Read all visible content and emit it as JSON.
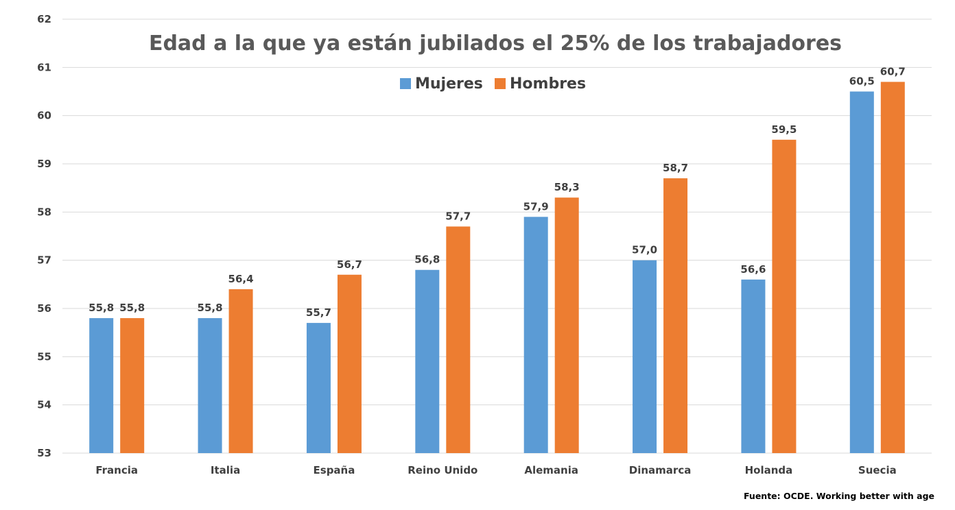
{
  "chart_data": {
    "type": "bar",
    "title": "Edad a la que ya están jubilados el 25% de los trabajadores",
    "categories": [
      "Francia",
      "Italia",
      "España",
      "Reino Unido",
      "Alemania",
      "Dinamarca",
      "Holanda",
      "Suecia"
    ],
    "series": [
      {
        "name": "Mujeres",
        "color": "#5b9bd5",
        "values": [
          55.8,
          55.8,
          55.7,
          56.8,
          57.9,
          57.0,
          56.6,
          60.5
        ],
        "labels": [
          "55,8",
          "55,8",
          "55,7",
          "56,8",
          "57,9",
          "57,0",
          "56,6",
          "60,5"
        ]
      },
      {
        "name": "Hombres",
        "color": "#ed7d31",
        "values": [
          55.8,
          56.4,
          56.7,
          57.7,
          58.3,
          58.7,
          59.5,
          60.7
        ],
        "labels": [
          "55,8",
          "56,4",
          "56,7",
          "57,7",
          "58,3",
          "58,7",
          "59,5",
          "60,7"
        ]
      }
    ],
    "ylim": [
      53,
      62
    ],
    "yticks": [
      53,
      54,
      55,
      56,
      57,
      58,
      59,
      60,
      61,
      62
    ],
    "xlabel": "",
    "ylabel": "",
    "grid": true,
    "legend_position": "top-center"
  },
  "source": "Fuente: OCDE. Working better with age"
}
